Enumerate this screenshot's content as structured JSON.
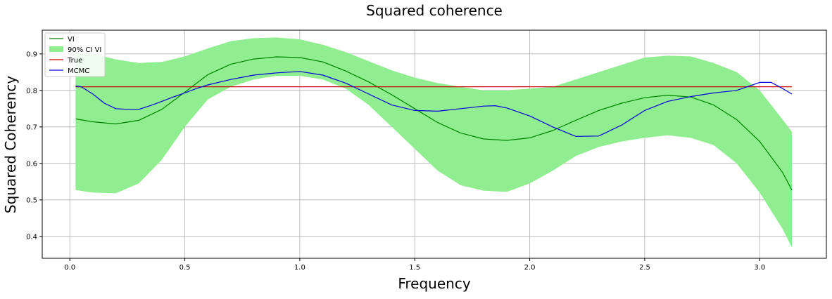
{
  "chart_data": {
    "type": "line",
    "title": "Squared coherence",
    "xlabel": "Frequency",
    "ylabel": "Squared Coherency",
    "xlim": [
      -0.12,
      3.29
    ],
    "ylim": [
      0.34,
      0.965
    ],
    "xticks": [
      0.0,
      0.5,
      1.0,
      1.5,
      2.0,
      2.5,
      3.0
    ],
    "xtick_labels": [
      "0.0",
      "0.5",
      "1.0",
      "1.5",
      "2.0",
      "2.5",
      "3.0"
    ],
    "yticks": [
      0.4,
      0.5,
      0.6,
      0.7,
      0.8,
      0.9
    ],
    "ytick_labels": [
      "0.4",
      "0.5",
      "0.6",
      "0.7",
      "0.8",
      "0.9"
    ],
    "grid": true,
    "legend_position": "top-left",
    "band": {
      "name": "90% CI VI",
      "color": "#90ee90",
      "x": [
        0.025,
        0.1,
        0.2,
        0.3,
        0.4,
        0.5,
        0.6,
        0.7,
        0.8,
        0.9,
        1.0,
        1.1,
        1.2,
        1.3,
        1.4,
        1.5,
        1.6,
        1.7,
        1.8,
        1.9,
        2.0,
        2.1,
        2.2,
        2.3,
        2.4,
        2.5,
        2.6,
        2.7,
        2.8,
        2.9,
        3.0,
        3.1,
        3.14
      ],
      "lower": [
        0.527,
        0.52,
        0.518,
        0.545,
        0.61,
        0.7,
        0.775,
        0.81,
        0.83,
        0.84,
        0.84,
        0.83,
        0.805,
        0.76,
        0.7,
        0.64,
        0.58,
        0.54,
        0.525,
        0.522,
        0.545,
        0.58,
        0.62,
        0.645,
        0.66,
        0.67,
        0.677,
        0.67,
        0.65,
        0.6,
        0.52,
        0.42,
        0.37
      ],
      "upper": [
        0.9,
        0.9,
        0.885,
        0.875,
        0.878,
        0.893,
        0.915,
        0.935,
        0.943,
        0.945,
        0.94,
        0.925,
        0.905,
        0.88,
        0.855,
        0.835,
        0.82,
        0.81,
        0.8,
        0.8,
        0.805,
        0.81,
        0.83,
        0.85,
        0.87,
        0.89,
        0.895,
        0.893,
        0.875,
        0.85,
        0.8,
        0.72,
        0.687
      ]
    },
    "series": [
      {
        "name": "VI",
        "color": "#008000",
        "x": [
          0.025,
          0.1,
          0.2,
          0.3,
          0.4,
          0.5,
          0.6,
          0.7,
          0.8,
          0.9,
          1.0,
          1.1,
          1.2,
          1.3,
          1.4,
          1.5,
          1.6,
          1.7,
          1.8,
          1.9,
          2.0,
          2.1,
          2.2,
          2.3,
          2.4,
          2.5,
          2.6,
          2.7,
          2.8,
          2.9,
          3.0,
          3.1,
          3.14
        ],
        "values": [
          0.722,
          0.714,
          0.708,
          0.718,
          0.748,
          0.795,
          0.843,
          0.872,
          0.886,
          0.892,
          0.89,
          0.878,
          0.853,
          0.823,
          0.788,
          0.75,
          0.712,
          0.683,
          0.667,
          0.663,
          0.67,
          0.69,
          0.718,
          0.745,
          0.765,
          0.78,
          0.787,
          0.782,
          0.76,
          0.72,
          0.66,
          0.575,
          0.527
        ]
      },
      {
        "name": "True",
        "color": "#cc0000",
        "x": [
          0.025,
          3.14
        ],
        "values": [
          0.81,
          0.81
        ]
      },
      {
        "name": "MCMC",
        "color": "#0000dd",
        "x": [
          0.025,
          0.05,
          0.1,
          0.15,
          0.2,
          0.25,
          0.3,
          0.35,
          0.4,
          0.45,
          0.5,
          0.55,
          0.6,
          0.7,
          0.8,
          0.9,
          1.0,
          1.1,
          1.2,
          1.3,
          1.4,
          1.5,
          1.6,
          1.7,
          1.8,
          1.85,
          1.9,
          2.0,
          2.1,
          2.2,
          2.3,
          2.4,
          2.5,
          2.6,
          2.7,
          2.8,
          2.9,
          3.0,
          3.05,
          3.1,
          3.14
        ],
        "values": [
          0.812,
          0.81,
          0.79,
          0.765,
          0.75,
          0.748,
          0.748,
          0.758,
          0.77,
          0.782,
          0.793,
          0.805,
          0.815,
          0.83,
          0.842,
          0.848,
          0.852,
          0.842,
          0.82,
          0.79,
          0.76,
          0.745,
          0.743,
          0.75,
          0.757,
          0.758,
          0.752,
          0.73,
          0.7,
          0.674,
          0.675,
          0.705,
          0.745,
          0.77,
          0.783,
          0.793,
          0.8,
          0.822,
          0.822,
          0.805,
          0.79
        ]
      }
    ]
  }
}
